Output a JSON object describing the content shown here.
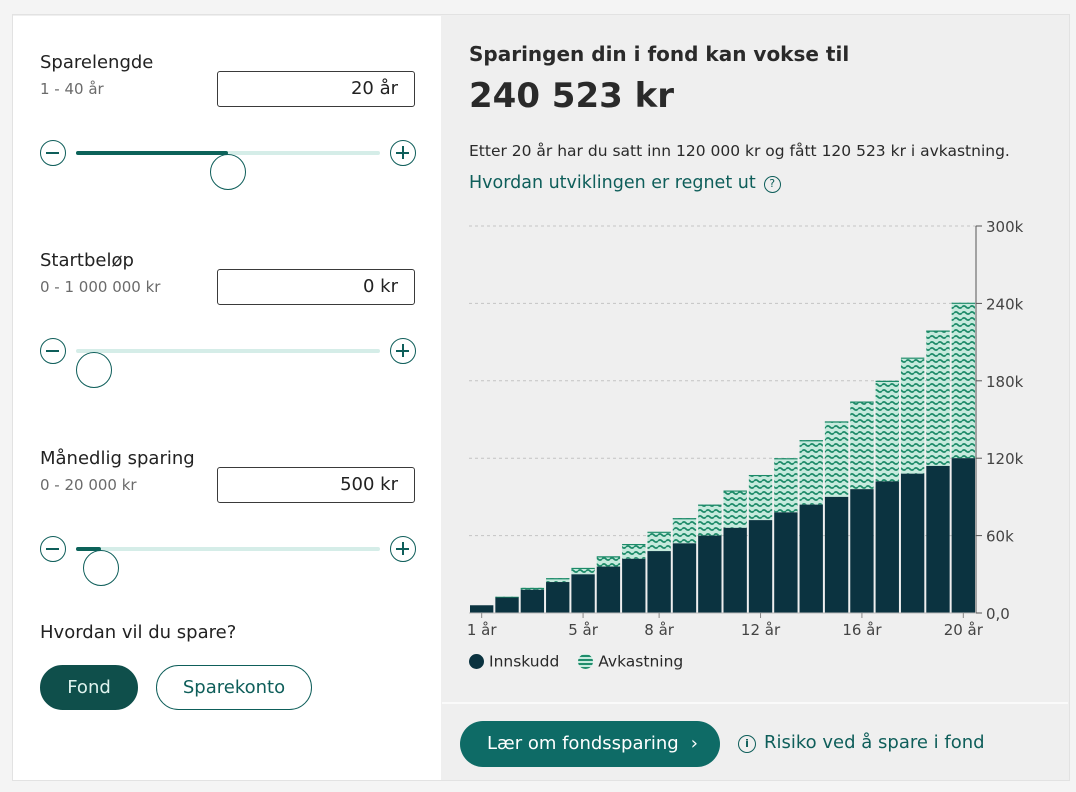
{
  "form": {
    "sparelengde": {
      "label": "Sparelengde",
      "range": "1 - 40 år",
      "value": "20 år",
      "slider_fraction": 0.5
    },
    "startbelop": {
      "label": "Startbeløp",
      "range": "0 - 1 000 000 kr",
      "value": "0 kr",
      "slider_fraction": 0.0
    },
    "maanedlig": {
      "label": "Månedlig sparing",
      "range": "0 - 20 000 kr",
      "value": "500 kr",
      "slider_fraction": 0.025
    },
    "question": "Hvordan vil du spare?",
    "options": {
      "fond": "Fond",
      "sparekonto": "Sparekonto",
      "selected": "fond"
    }
  },
  "result": {
    "title": "Sparingen din i fond kan vokse til",
    "amount": "240 523 kr",
    "description": "Etter 20 år har du satt inn 120 000 kr og fått 120 523 kr i avkastning.",
    "link": "Hvordan utviklingen er regnet ut",
    "link_icon": "question-circle-icon"
  },
  "chart_data": {
    "type": "bar",
    "stacked": true,
    "x": [
      1,
      2,
      3,
      4,
      5,
      6,
      7,
      8,
      9,
      10,
      11,
      12,
      13,
      14,
      15,
      16,
      17,
      18,
      19,
      20
    ],
    "x_tick_labels": [
      "1 år",
      "5 år",
      "8 år",
      "12 år",
      "16 år",
      "20 år"
    ],
    "x_tick_positions": [
      1,
      5,
      8,
      12,
      16,
      20
    ],
    "y_tick_labels": [
      "0,0",
      "60k",
      "120k",
      "180k",
      "240k",
      "300k"
    ],
    "y_tick_values": [
      0,
      60000,
      120000,
      180000,
      240000,
      300000
    ],
    "ylim": [
      0,
      300000
    ],
    "axis_position": "right",
    "grid": true,
    "legend_position": "bottom-left",
    "series": [
      {
        "name": "Innskudd",
        "color": "#0b3340",
        "values": [
          6000,
          12000,
          18000,
          24000,
          30000,
          36000,
          42000,
          48000,
          54000,
          60000,
          66000,
          72000,
          78000,
          84000,
          90000,
          96000,
          102000,
          108000,
          114000,
          120000
        ]
      },
      {
        "name": "Avkastning",
        "color": "#1f8d6c",
        "values": [
          0,
          600,
          1500,
          3000,
          5000,
          8000,
          11500,
          15000,
          19500,
          24000,
          29000,
          35000,
          42000,
          50000,
          58500,
          68000,
          78000,
          90000,
          105000,
          120523
        ]
      }
    ]
  },
  "footer": {
    "cta_label": "Lær om fondssparing",
    "cta_icon": "chevron-right-icon",
    "risk_label": "Risiko ved å spare i fond",
    "risk_icon": "info-circle-icon"
  }
}
